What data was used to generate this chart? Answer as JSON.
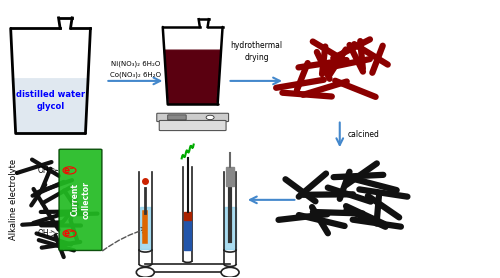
{
  "bg_color": "#ffffff",
  "arrow_color": "#4488CC",
  "step1_label_line1": "Ni(NO₃)₂ 6H₂O",
  "step1_label_line2": "Co(NO₃)₂ 6H₂O",
  "step2_label": "hydrothermal\ndrying",
  "step3_label": "calcined",
  "beaker1_text": "distilled water\nglycol",
  "beaker1_text_color": "#0000FF",
  "nanowire_dark_red": "#8B0000",
  "nanowire_black": "#111111",
  "electrolyte_label": "Alkaline electrolyte",
  "collector_label": "Current\ncollector",
  "collector_color": "#22BB22",
  "figsize": [
    5.0,
    2.78
  ],
  "dpi": 100
}
